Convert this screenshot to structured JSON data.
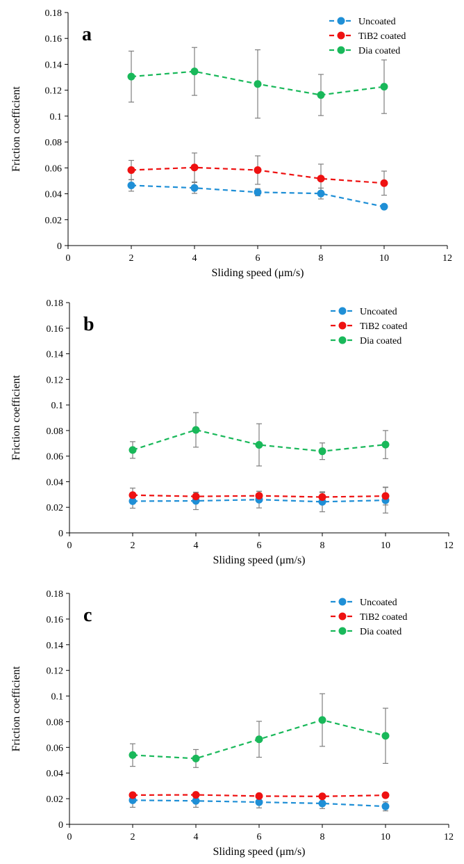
{
  "chart_data": [
    {
      "type": "line",
      "panel_label": "a",
      "xlabel": "Sliding speed (μm/s)",
      "ylabel": "Friction coefficient",
      "xlim": [
        0,
        12
      ],
      "ylim": [
        0,
        0.18
      ],
      "xticks": [
        0,
        2,
        4,
        6,
        8,
        10,
        12
      ],
      "yticks": [
        0,
        0.02,
        0.04,
        0.06,
        0.08,
        0.1,
        0.12,
        0.14,
        0.16,
        0.18
      ],
      "ytick_labels": [
        "0",
        "0.02",
        "0.04",
        "0.06",
        "0.08",
        "0.1",
        "0.12",
        "0.14",
        "0.16",
        "0.18"
      ],
      "grid": false,
      "legend_position": "top-right",
      "x": [
        2,
        4,
        6,
        8,
        10
      ],
      "series": [
        {
          "name": "Uncoated",
          "color": "#1f8fd6",
          "values": [
            0.0465,
            0.0445,
            0.0412,
            0.0402,
            0.03
          ],
          "errors": [
            0.0045,
            0.0042,
            0.0028,
            0.0042,
            0.0014
          ]
        },
        {
          "name": "TiB2 coated",
          "color": "#ee1111",
          "values": [
            0.0583,
            0.0603,
            0.0583,
            0.0517,
            0.0482
          ],
          "errors": [
            0.0075,
            0.0112,
            0.011,
            0.0112,
            0.0093
          ]
        },
        {
          "name": "Dia coated",
          "color": "#19b85a",
          "values": [
            0.1305,
            0.1345,
            0.1248,
            0.1163,
            0.1227
          ],
          "errors": [
            0.0197,
            0.0185,
            0.0264,
            0.0159,
            0.0207
          ]
        }
      ]
    },
    {
      "type": "line",
      "panel_label": "b",
      "xlabel": "Sliding speed (μm/s)",
      "ylabel": "Friction coefficient",
      "xlim": [
        0,
        12
      ],
      "ylim": [
        0,
        0.18
      ],
      "xticks": [
        0,
        2,
        4,
        6,
        8,
        10,
        12
      ],
      "yticks": [
        0,
        0.02,
        0.04,
        0.06,
        0.08,
        0.1,
        0.12,
        0.14,
        0.16,
        0.18
      ],
      "ytick_labels": [
        "0",
        "0.02",
        "0.04",
        "0.06",
        "0.08",
        "0.1",
        "0.12",
        "0.14",
        "0.16",
        "0.18"
      ],
      "grid": false,
      "legend_position": "top-right",
      "x": [
        2,
        4,
        6,
        8,
        10
      ],
      "series": [
        {
          "name": "Uncoated",
          "color": "#1f8fd6",
          "values": [
            0.0248,
            0.025,
            0.026,
            0.0243,
            0.0255
          ],
          "errors": [
            0.0055,
            0.0068,
            0.0065,
            0.0078,
            0.01
          ]
        },
        {
          "name": "TiB2 coated",
          "color": "#ee1111",
          "values": [
            0.0295,
            0.0285,
            0.029,
            0.028,
            0.0288
          ],
          "errors": [
            0.0055,
            0.003,
            0.0035,
            0.0035,
            0.007
          ]
        },
        {
          "name": "Dia coated",
          "color": "#19b85a",
          "values": [
            0.0648,
            0.0805,
            0.0688,
            0.0638,
            0.069
          ],
          "errors": [
            0.0065,
            0.0135,
            0.0165,
            0.0065,
            0.011
          ]
        }
      ]
    },
    {
      "type": "line",
      "panel_label": "c",
      "xlabel": "Sliding speed (μm/s)",
      "ylabel": "Friction coefficient",
      "xlim": [
        0,
        12
      ],
      "ylim": [
        0,
        0.18
      ],
      "xticks": [
        0,
        2,
        4,
        6,
        8,
        10,
        12
      ],
      "yticks": [
        0,
        0.02,
        0.04,
        0.06,
        0.08,
        0.1,
        0.12,
        0.14,
        0.16,
        0.18
      ],
      "ytick_labels": [
        "0",
        "0.02",
        "0.04",
        "0.06",
        "0.08",
        "0.1",
        "0.12",
        "0.14",
        "0.16",
        "0.18"
      ],
      "grid": false,
      "legend_position": "top-right",
      "x": [
        2,
        4,
        6,
        8,
        10
      ],
      "series": [
        {
          "name": "Uncoated",
          "color": "#1f8fd6",
          "values": [
            0.0188,
            0.0183,
            0.0173,
            0.0163,
            0.014
          ],
          "errors": [
            0.0055,
            0.005,
            0.0045,
            0.004,
            0.0035
          ]
        },
        {
          "name": "TiB2 coated",
          "color": "#ee1111",
          "values": [
            0.0228,
            0.023,
            0.022,
            0.0218,
            0.0227
          ],
          "errors": [
            0.001,
            0.001,
            0.001,
            0.001,
            0.001
          ]
        },
        {
          "name": "Dia coated",
          "color": "#19b85a",
          "values": [
            0.054,
            0.0513,
            0.0663,
            0.0813,
            0.069
          ],
          "errors": [
            0.0088,
            0.007,
            0.014,
            0.0205,
            0.0215
          ]
        }
      ]
    }
  ]
}
